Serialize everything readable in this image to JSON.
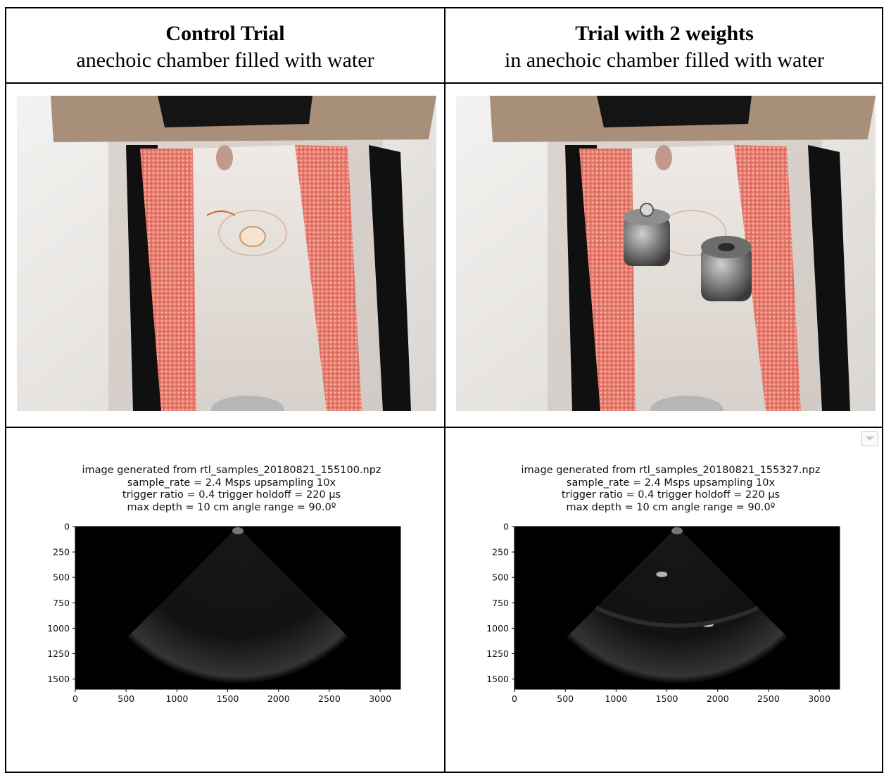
{
  "columns": [
    {
      "title": "Control Trial",
      "subtitle": "anechoic chamber filled with water",
      "photo": {
        "weights_visible": 0
      },
      "plot": {
        "title_lines": [
          "image generated from rtl_samples_20180821_155100.npz",
          "sample_rate = 2.4 Msps  upsampling 10x",
          "trigger ratio = 0.4  trigger holdoff = 220 µs",
          "max depth = 10 cm  angle range = 90.0º"
        ]
      }
    },
    {
      "title": "Trial with 2 weights",
      "subtitle": "in anechoic chamber filled with water",
      "photo": {
        "weights_visible": 2
      },
      "plot": {
        "title_lines": [
          "image generated from rtl_samples_20180821_155327.npz",
          "sample_rate = 2.4 Msps  upsampling 10x",
          "trigger ratio = 0.4  trigger holdoff = 220 µs",
          "max depth = 10 cm  angle range = 90.0º"
        ]
      }
    }
  ],
  "chart_data": [
    {
      "type": "heatmap",
      "title": "image generated from rtl_samples_20180821_155100.npz\nsample_rate = 2.4 Msps  upsampling 10x\ntrigger ratio = 0.4  trigger holdoff = 220 µs\nmax depth = 10 cm  angle range = 90.0º",
      "xlabel": "",
      "ylabel": "",
      "xlim": [
        0,
        3200
      ],
      "ylim": [
        1600,
        0
      ],
      "xticks": [
        "0",
        "500",
        "1000",
        "1500",
        "2000",
        "2500",
        "3000"
      ],
      "yticks": [
        "0",
        "250",
        "500",
        "750",
        "1000",
        "1250",
        "1500"
      ],
      "colormap": "gray",
      "grid": false
    },
    {
      "type": "heatmap",
      "title": "image generated from rtl_samples_20180821_155327.npz\nsample_rate = 2.4 Msps  upsampling 10x\ntrigger ratio = 0.4  trigger holdoff = 220 µs\nmax depth = 10 cm  angle range = 90.0º",
      "xlabel": "",
      "ylabel": "",
      "xlim": [
        0,
        3200
      ],
      "ylim": [
        1600,
        0
      ],
      "xticks": [
        "0",
        "500",
        "1000",
        "1500",
        "2000",
        "2500",
        "3000"
      ],
      "yticks": [
        "0",
        "250",
        "500",
        "750",
        "1000",
        "1250",
        "1500"
      ],
      "colormap": "gray",
      "grid": false
    }
  ]
}
